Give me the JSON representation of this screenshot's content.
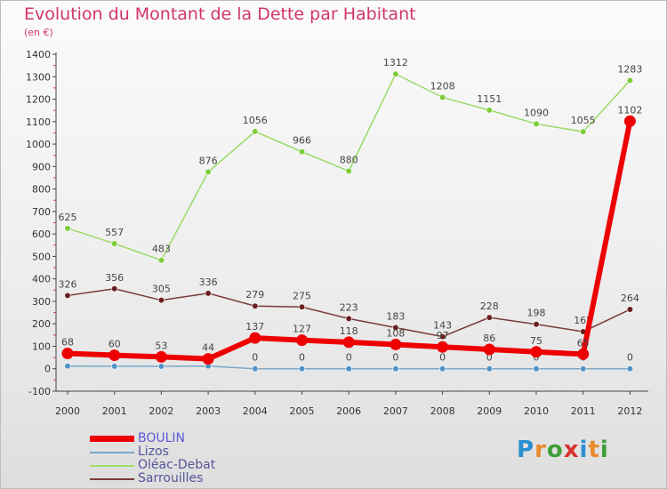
{
  "title": "Evolution du Montant de la Dette par Habitant",
  "subtitle": "(en €)",
  "logo": {
    "letters": [
      "P",
      "r",
      "o",
      "x",
      "i",
      "t",
      "i"
    ],
    "colors": [
      "#2a8fd0",
      "#e8892a",
      "#3f9e38",
      "#d8312e",
      "#2a8fd0",
      "#e8892a",
      "#3f9e38"
    ]
  },
  "chart_data": {
    "type": "line",
    "title": "Evolution du Montant de la Dette par Habitant",
    "unit": "(en €)",
    "x": [
      "2000",
      "2001",
      "2002",
      "2003",
      "2004",
      "2005",
      "2006",
      "2007",
      "2008",
      "2009",
      "2010",
      "2011",
      "2012"
    ],
    "ylim": [
      -100,
      1400
    ],
    "yticks": [
      -100,
      0,
      100,
      200,
      300,
      400,
      500,
      600,
      700,
      800,
      900,
      1000,
      1100,
      1200,
      1300,
      1400
    ],
    "grid": false,
    "legend_position": "bottom-left",
    "series": [
      {
        "name": "Oléac-Debat",
        "color": "#99db66",
        "point_color": "#7dcc3a",
        "values": [
          625,
          557,
          483,
          876,
          1056,
          966,
          880,
          1312,
          1208,
          1151,
          1090,
          1055,
          1283
        ],
        "labels": [
          "625",
          "557",
          "483",
          "876",
          "1056",
          "966",
          "880",
          "1312",
          "1208",
          "1151",
          "1090",
          "1055",
          "1283"
        ]
      },
      {
        "name": "Sarrouilles",
        "color": "#7a3a3a",
        "point_color": "#6b1f1f",
        "values": [
          326,
          356,
          305,
          336,
          279,
          275,
          223,
          183,
          143,
          228,
          198,
          165,
          264
        ],
        "labels": [
          "326",
          "356",
          "305",
          "336",
          "279",
          "275",
          "223",
          "183",
          "143",
          "228",
          "198",
          "165",
          "264"
        ]
      },
      {
        "name": "Lizos",
        "color": "#7ba8c9",
        "point_color": "#4f93c6",
        "values": [
          12,
          11,
          11,
          12,
          0,
          0,
          0,
          0,
          0,
          0,
          0,
          0,
          0
        ],
        "labels": [
          "",
          "",
          "",
          "",
          "0",
          "0",
          "0",
          "0",
          "0",
          "0",
          "0",
          "0",
          "0"
        ]
      },
      {
        "name": "BOULIN",
        "color": "#ee0000",
        "point_color": "#ee0000",
        "values": [
          68,
          60,
          53,
          44,
          137,
          127,
          118,
          108,
          97,
          86,
          75,
          65,
          1102
        ],
        "labels": [
          "68",
          "60",
          "53",
          "44",
          "137",
          "127",
          "118",
          "108",
          "97",
          "86",
          "75",
          "65",
          "1102"
        ]
      }
    ]
  }
}
